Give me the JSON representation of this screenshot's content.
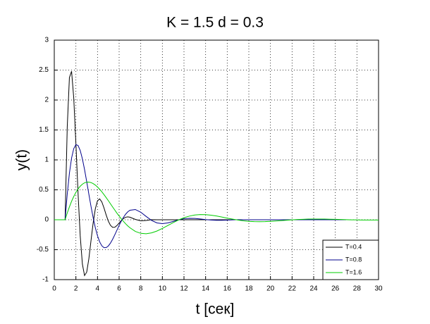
{
  "chart_data": {
    "type": "line",
    "title": "K = 1.5 d = 0.3",
    "x_label": "t [сек]",
    "y_label": "y(t)",
    "x": [
      0,
      1.0,
      1.2,
      1.4,
      1.6,
      1.8,
      2.0,
      2.2,
      2.4,
      2.6,
      2.8,
      3.0,
      3.2,
      3.4,
      3.6,
      3.8,
      4.0,
      4.2,
      4.4,
      4.6,
      4.8,
      5.0,
      5.2,
      5.4,
      5.6,
      5.8,
      6.0,
      6.2,
      6.4,
      6.6,
      6.8,
      7.0,
      7.5,
      8,
      8.5,
      9,
      9.5,
      10,
      10.5,
      11,
      11.5,
      12,
      12.5,
      13,
      13.5,
      14,
      14.5,
      15,
      15.5,
      16,
      16.5,
      17,
      17.5,
      18,
      18.5,
      19,
      19.5,
      20,
      20.5,
      21,
      21.5,
      22,
      22.5,
      23,
      23.5,
      24,
      24.5,
      25,
      25.5,
      26,
      26.5,
      27,
      27.5,
      28,
      28.5,
      29,
      29.5,
      30
    ],
    "series": [
      {
        "name": "T=0.4",
        "color": "#000000",
        "values": [
          0,
          0,
          1.553,
          2.376,
          2.481,
          2.037,
          1.274,
          0.441,
          -0.27,
          -0.74,
          -0.932,
          -0.875,
          -0.649,
          -0.345,
          -0.046,
          0.185,
          0.317,
          0.348,
          0.297,
          0.197,
          0.08,
          -0.023,
          -0.094,
          -0.127,
          -0.125,
          -0.096,
          -0.055,
          -0.013,
          0.021,
          0.042,
          0.048,
          0.043,
          0.006,
          -0.017,
          -0.012,
          0.002,
          0,
          0,
          0,
          0,
          0,
          0,
          0,
          0,
          0,
          0,
          0,
          0,
          0,
          0,
          0,
          0,
          0,
          0,
          0,
          0,
          0,
          0,
          0,
          0,
          0,
          0,
          0,
          0,
          0,
          0,
          0,
          0,
          0,
          0,
          0,
          0,
          null,
          null,
          null,
          null,
          null,
          null
        ]
      },
      {
        "name": "T=0.8",
        "color": "#00008b",
        "values": [
          0,
          0,
          0.431,
          0.777,
          1.03,
          1.188,
          1.255,
          1.241,
          1.157,
          1.018,
          0.84,
          0.637,
          0.426,
          0.221,
          0.031,
          -0.135,
          -0.268,
          -0.37,
          -0.435,
          -0.466,
          -0.465,
          -0.438,
          -0.389,
          -0.325,
          -0.251,
          -0.173,
          -0.095,
          -0.023,
          0.04,
          0.093,
          0.132,
          0.159,
          0.171,
          0.126,
          0.055,
          -0.011,
          -0.053,
          -0.065,
          -0.053,
          -0.028,
          -0.002,
          0.017,
          0.024,
          0.022,
          0.013,
          0.003,
          -0.005,
          -0.009,
          -0.009,
          -0.006,
          -0.002,
          0.001,
          0,
          0,
          0,
          0,
          0,
          0,
          0,
          0,
          0,
          0,
          0,
          0,
          0,
          0,
          0,
          0,
          0,
          0,
          0,
          0,
          null,
          null,
          null,
          null,
          null,
          null
        ]
      },
      {
        "name": "T=1.6",
        "color": "#00cc00",
        "values": [
          0,
          0,
          0.113,
          0.215,
          0.308,
          0.388,
          0.457,
          0.515,
          0.56,
          0.594,
          0.617,
          0.628,
          0.629,
          0.621,
          0.604,
          0.579,
          0.547,
          0.509,
          0.467,
          0.42,
          0.37,
          0.319,
          0.266,
          0.213,
          0.162,
          0.11,
          0.062,
          0.015,
          -0.027,
          -0.067,
          -0.103,
          -0.134,
          -0.195,
          -0.227,
          -0.234,
          -0.219,
          -0.188,
          -0.145,
          -0.096,
          -0.048,
          -0.003,
          0.034,
          0.061,
          0.079,
          0.087,
          0.085,
          0.077,
          0.063,
          0.046,
          0.027,
          0.01,
          -0.005,
          -0.018,
          -0.026,
          -0.031,
          -0.032,
          -0.031,
          -0.026,
          -0.021,
          -0.014,
          -0.007,
          -0.001,
          0.004,
          0.008,
          0.011,
          0.012,
          0.012,
          0.011,
          0.009,
          0.007,
          0.004,
          0.002,
          -0.001,
          -0.002,
          -0.004,
          -0.004,
          -0.004,
          -0.004
        ]
      }
    ],
    "xlim": [
      0,
      30
    ],
    "xticks": [
      0,
      2,
      4,
      6,
      8,
      10,
      12,
      14,
      16,
      18,
      20,
      22,
      24,
      26,
      28,
      30
    ],
    "ylim": [
      -1,
      3
    ],
    "yticks": [
      -1,
      -0.5,
      0,
      0.5,
      1,
      1.5,
      2,
      2.5,
      3
    ],
    "grid": true,
    "legend": "lower right"
  }
}
